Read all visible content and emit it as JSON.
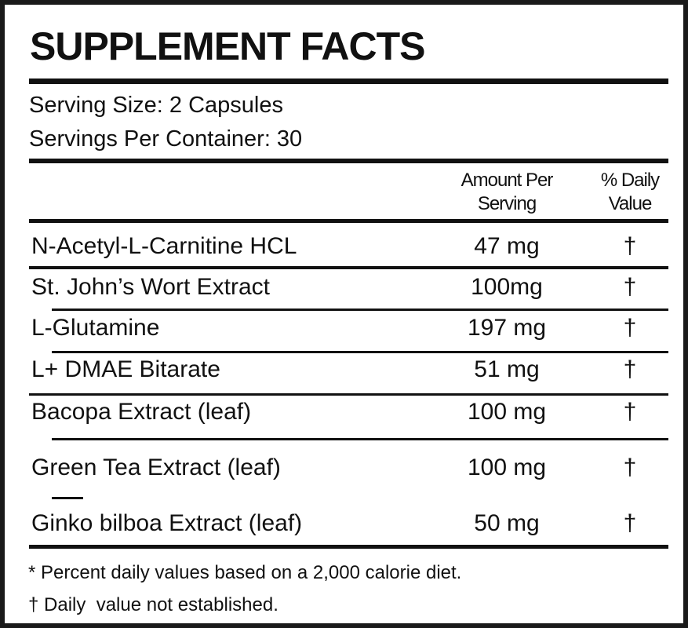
{
  "title": "SUPPLEMENT FACTS",
  "serving": {
    "size": "Serving Size: 2 Capsules",
    "per_container": "Servings Per Container: 30"
  },
  "table": {
    "columns": [
      [
        "Amount Per",
        "Serving"
      ],
      [
        "% Daily",
        "Value"
      ]
    ],
    "rows": [
      [
        "N-Acetyl-L-Carnitine HCL",
        "47 mg",
        "†"
      ],
      [
        "St. John’s Wort Extract",
        "100mg",
        "†"
      ],
      [
        "L-Glutamine",
        "197 mg",
        "†"
      ],
      [
        "L+ DMAE Bitarate",
        "51 mg",
        "†"
      ],
      [
        "Bacopa Extract (leaf)",
        "100 mg",
        "†"
      ],
      [
        "Green Tea Extract (leaf)",
        "100 mg",
        "†"
      ],
      [
        "Ginko bilboa Extract (leaf)",
        "50 mg",
        "†"
      ]
    ]
  },
  "footnotes": [
    "* Percent daily values based on a 2,000 calorie diet.",
    "† Daily  value not established."
  ]
}
